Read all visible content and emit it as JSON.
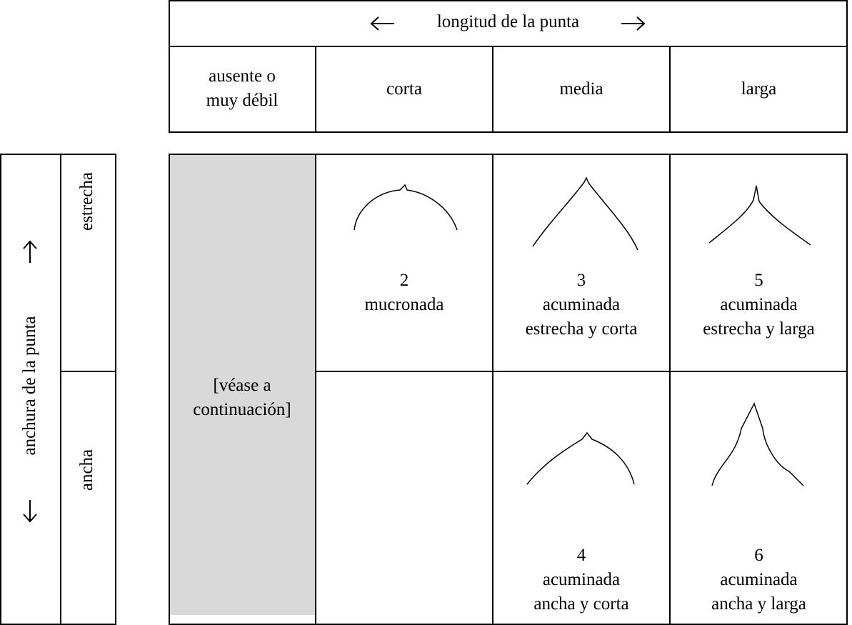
{
  "length_header": {
    "title": "longitud de la punta",
    "columns": [
      [
        "ausente o",
        "muy débil"
      ],
      [
        "corta"
      ],
      [
        "media"
      ],
      [
        "larga"
      ]
    ]
  },
  "width_header": {
    "title": "anchura de la punta",
    "rows": [
      "estrecha",
      "ancha"
    ]
  },
  "grid": {
    "placeholder": [
      "[véase a",
      "continuación]"
    ],
    "cells": [
      {
        "number": "2",
        "label": [
          "mucronada"
        ]
      },
      {
        "number": "3",
        "label": [
          "acuminada",
          "estrecha y corta"
        ]
      },
      {
        "number": "5",
        "label": [
          "acuminada",
          "estrecha y larga"
        ]
      },
      {
        "number": "4",
        "label": [
          "acuminada",
          "ancha y corta"
        ]
      },
      {
        "number": "6",
        "label": [
          "acuminada",
          "ancha y larga"
        ]
      }
    ]
  }
}
